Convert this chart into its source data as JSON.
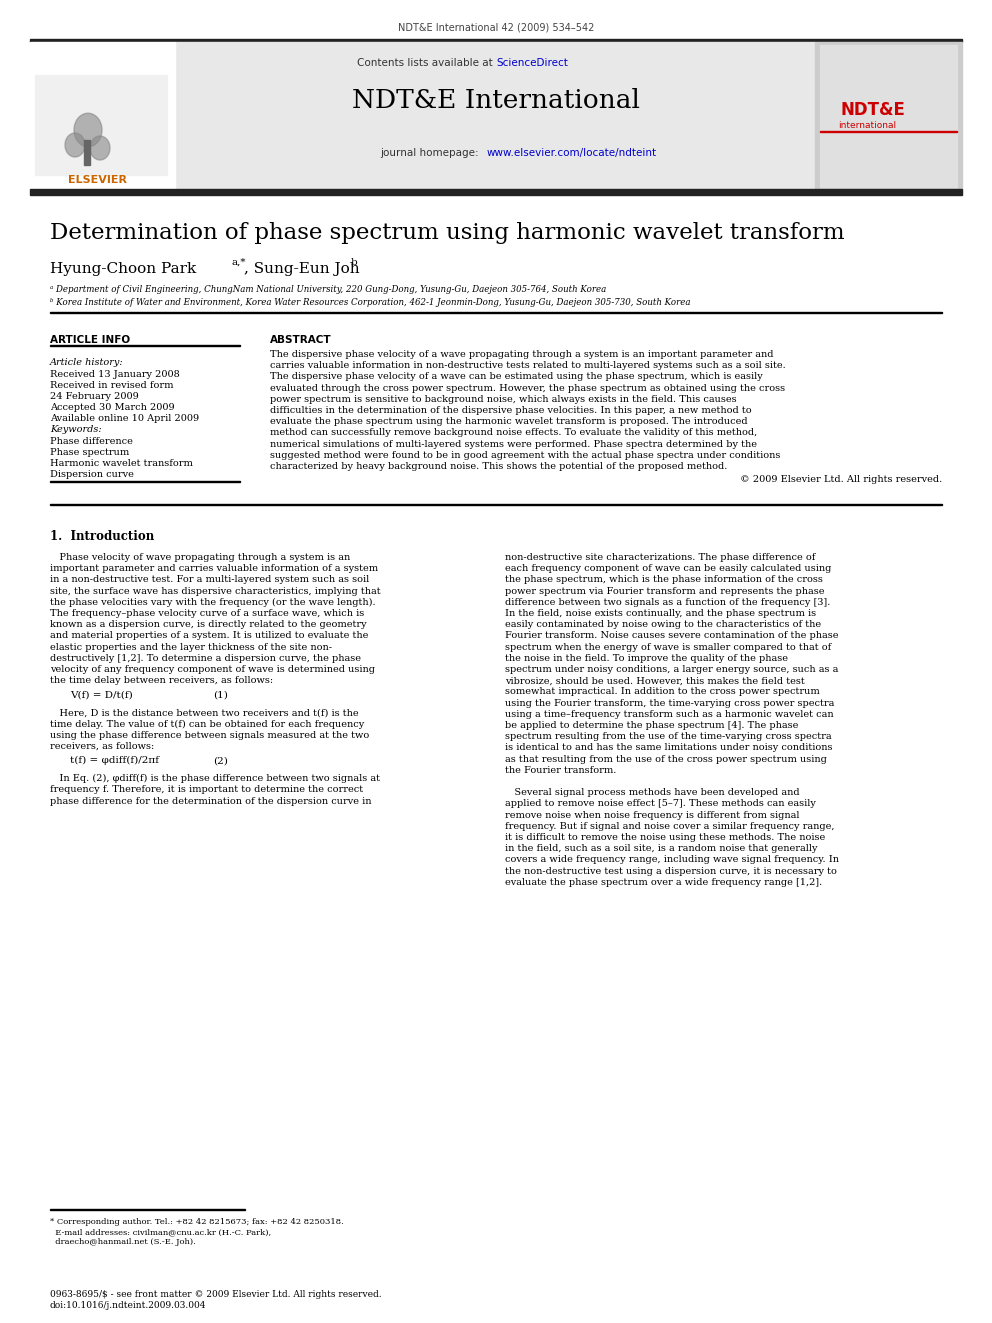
{
  "journal_header": "NDT&E International 42 (2009) 534–542",
  "contents_available": "Contents lists available at ScienceDirect",
  "journal_name": "NDT&E International",
  "journal_url": "journal homepage: www.elsevier.com/locate/ndteint",
  "paper_title": "Determination of phase spectrum using harmonic wavelet transform",
  "affiliation_a": "ᵃ Department of Civil Engineering, ChungNam National University, 220 Gung-Dong, Yusung-Gu, Daejeon 305-764, South Korea",
  "affiliation_b": "ᵇ Korea Institute of Water and Environment, Korea Water Resources Corporation, 462-1 Jeonmin-Dong, Yusung-Gu, Daejeon 305-730, South Korea",
  "article_info_title": "ARTICLE INFO",
  "article_history_title": "Article history:",
  "article_history": [
    "Received 13 January 2008",
    "Received in revised form",
    "24 February 2009",
    "Accepted 30 March 2009",
    "Available online 10 April 2009"
  ],
  "keywords_title": "Keywords:",
  "keywords": [
    "Phase difference",
    "Phase spectrum",
    "Harmonic wavelet transform",
    "Dispersion curve"
  ],
  "abstract_title": "ABSTRACT",
  "abstract_lines": [
    "The dispersive phase velocity of a wave propagating through a system is an important parameter and",
    "carries valuable information in non-destructive tests related to multi-layered systems such as a soil site.",
    "The dispersive phase velocity of a wave can be estimated using the phase spectrum, which is easily",
    "evaluated through the cross power spectrum. However, the phase spectrum as obtained using the cross",
    "power spectrum is sensitive to background noise, which always exists in the field. This causes",
    "difficulties in the determination of the dispersive phase velocities. In this paper, a new method to",
    "evaluate the phase spectrum using the harmonic wavelet transform is proposed. The introduced",
    "method can successfully remove background noise effects. To evaluate the validity of this method,",
    "numerical simulations of multi-layered systems were performed. Phase spectra determined by the",
    "suggested method were found to be in good agreement with the actual phase spectra under conditions",
    "characterized by heavy background noise. This shows the potential of the proposed method."
  ],
  "copyright": "© 2009 Elsevier Ltd. All rights reserved.",
  "section1_title": "1.  Introduction",
  "col1_lines": [
    "   Phase velocity of wave propagating through a system is an",
    "important parameter and carries valuable information of a system",
    "in a non-destructive test. For a multi-layered system such as soil",
    "site, the surface wave has dispersive characteristics, implying that",
    "the phase velocities vary with the frequency (or the wave length).",
    "The frequency–phase velocity curve of a surface wave, which is",
    "known as a dispersion curve, is directly related to the geometry",
    "and material properties of a system. It is utilized to evaluate the",
    "elastic properties and the layer thickness of the site non-",
    "destructively [1,2]. To determine a dispersion curve, the phase",
    "velocity of any frequency component of wave is determined using",
    "the time delay between receivers, as follows:"
  ],
  "eq1_text": "V(f) = D/t(f)",
  "eq1_num": "(1)",
  "eq1_after": [
    "   Here, D is the distance between two receivers and t(f) is the",
    "time delay. The value of t(f) can be obtained for each frequency",
    "using the phase difference between signals measured at the two",
    "receivers, as follows:"
  ],
  "eq2_text": "t(f) = φdiff(f)/2πf",
  "eq2_num": "(2)",
  "eq2_after": [
    "   In Eq. (2), φdiff(f) is the phase difference between two signals at",
    "frequency f. Therefore, it is important to determine the correct",
    "phase difference for the determination of the dispersion curve in"
  ],
  "col2_lines": [
    "non-destructive site characterizations. The phase difference of",
    "each frequency component of wave can be easily calculated using",
    "the phase spectrum, which is the phase information of the cross",
    "power spectrum via Fourier transform and represents the phase",
    "difference between two signals as a function of the frequency [3].",
    "In the field, noise exists continually, and the phase spectrum is",
    "easily contaminated by noise owing to the characteristics of the",
    "Fourier transform. Noise causes severe contamination of the phase",
    "spectrum when the energy of wave is smaller compared to that of",
    "the noise in the field. To improve the quality of the phase",
    "spectrum under noisy conditions, a larger energy source, such as a",
    "vibrosize, should be used. However, this makes the field test",
    "somewhat impractical. In addition to the cross power spectrum",
    "using the Fourier transform, the time-varying cross power spectra",
    "using a time–frequency transform such as a harmonic wavelet can",
    "be applied to determine the phase spectrum [4]. The phase",
    "spectrum resulting from the use of the time-varying cross spectra",
    "is identical to and has the same limitations under noisy conditions",
    "as that resulting from the use of the cross power spectrum using",
    "the Fourier transform.",
    "",
    "   Several signal process methods have been developed and",
    "applied to remove noise effect [5–7]. These methods can easily",
    "remove noise when noise frequency is different from signal",
    "frequency. But if signal and noise cover a similar frequency range,",
    "it is difficult to remove the noise using these methods. The noise",
    "in the field, such as a soil site, is a random noise that generally",
    "covers a wide frequency range, including wave signal frequency. In",
    "the non-destructive test using a dispersion curve, it is necessary to",
    "evaluate the phase spectrum over a wide frequency range [1,2]."
  ],
  "footnote_lines": [
    "* Corresponding author. Tel.: +82 42 8215673; fax: +82 42 8250318.",
    "  E-mail addresses: civilman@cnu.ac.kr (H.-C. Park),",
    "  draecho@hanmail.net (S.-E. Joh)."
  ],
  "footer_lines": [
    "0963-8695/$ - see front matter © 2009 Elsevier Ltd. All rights reserved.",
    "doi:10.1016/j.ndteint.2009.03.004"
  ],
  "bg_color": "#ffffff",
  "header_bg": "#e8e8e8",
  "elsevier_color": "#cc6600",
  "ndte_color": "#cc0000",
  "link_color": "#0000cc"
}
